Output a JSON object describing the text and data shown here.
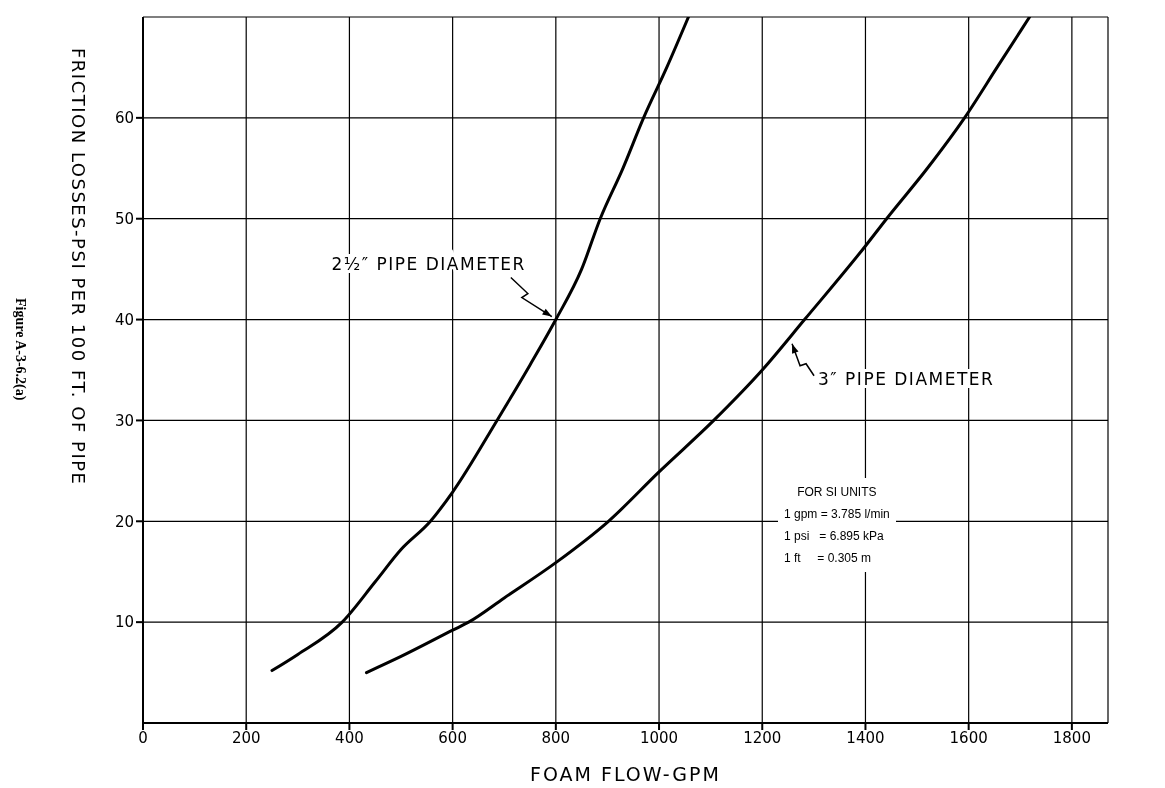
{
  "chart_data": {
    "type": "line",
    "xlabel": "FOAM  FLOW-GPM",
    "ylabel": "FRICTION LOSSES-PSI PER 100 FT. OF PIPE",
    "xlim": [
      0,
      1870
    ],
    "xticks": [
      0,
      200,
      400,
      600,
      800,
      1000,
      1200,
      1400,
      1600,
      1800
    ],
    "ylim": [
      0,
      70
    ],
    "yticks": [
      10,
      20,
      30,
      40,
      50,
      60
    ],
    "grid": true,
    "marker": "none",
    "line_style": "solid",
    "series": [
      {
        "color": "#000000",
        "x": [
          250,
          300,
          386,
          450,
          500,
          557,
          600,
          686,
          750,
          800,
          850,
          886,
          930,
          970,
          1015,
          1057
        ],
        "values": [
          5.2,
          6.8,
          10,
          14,
          17.2,
          20,
          22.9,
          30,
          35.5,
          40,
          45,
          50,
          55,
          60,
          65,
          70
        ]
      },
      {
        "color": "#000000",
        "x": [
          433,
          500,
          600,
          631,
          700,
          800,
          902,
          1000,
          1106,
          1200,
          1282,
          1400,
          1441,
          1520,
          1592,
          1655,
          1718
        ],
        "values": [
          5,
          6.6,
          9.2,
          10,
          12.4,
          15.9,
          20,
          24.9,
          30,
          35,
          40,
          47.3,
          50,
          55,
          60,
          65,
          70
        ]
      }
    ],
    "annotations": [
      {
        "text": "2½″ PIPE DIAMETER",
        "x": 800,
        "y": 40
      },
      {
        "text": "3″ PIPE DIAMETER",
        "x": 1250,
        "y": 38
      },
      "FOR SI UNITS",
      "1 gpm = 3.785 l/min",
      "1 psi   = 6.895 kPa",
      "1 ft     = 0.305 m",
      "Figure A-3-6.2(a)"
    ]
  }
}
